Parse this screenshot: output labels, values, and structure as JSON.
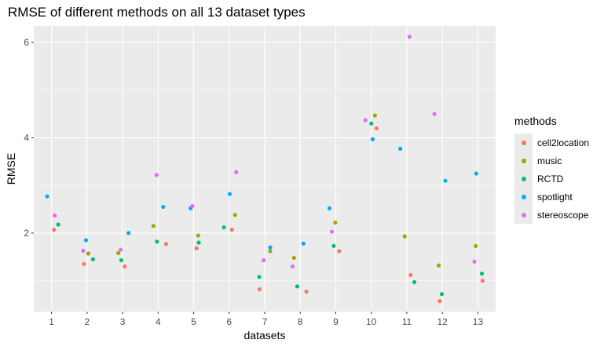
{
  "chart_data": {
    "type": "scatter",
    "title": "RMSE of different methods on all 13 dataset types",
    "xlabel": "datasets",
    "ylabel": "RMSE",
    "categories": [
      "1",
      "2",
      "3",
      "4",
      "5",
      "6",
      "7",
      "8",
      "9",
      "10",
      "11",
      "12",
      "13"
    ],
    "ylim": [
      0.35,
      6.35
    ],
    "yticks": [
      2,
      4,
      6
    ],
    "grid": true,
    "legend_position": "right",
    "legend_title": "methods",
    "series": [
      {
        "name": "cell2location",
        "color": "#F8766D",
        "values": [
          2.07,
          1.35,
          1.3,
          1.77,
          1.68,
          2.07,
          0.82,
          0.77,
          1.62,
          4.2,
          1.12,
          0.57,
          1.0
        ]
      },
      {
        "name": "music",
        "color": "#A3A500",
        "values": [
          null,
          1.57,
          1.58,
          2.15,
          1.95,
          2.38,
          1.62,
          1.48,
          2.22,
          4.47,
          1.93,
          1.32,
          1.73
        ]
      },
      {
        "name": "RCTD",
        "color": "#00BF7D",
        "values": [
          2.18,
          1.45,
          1.43,
          1.82,
          1.8,
          2.12,
          1.08,
          0.88,
          1.73,
          4.3,
          0.97,
          0.72,
          1.15
        ]
      },
      {
        "name": "spotlight",
        "color": "#00B0F6",
        "values": [
          2.77,
          1.85,
          2.0,
          2.55,
          2.52,
          2.82,
          1.7,
          1.78,
          2.52,
          3.97,
          3.77,
          3.1,
          3.25
        ]
      },
      {
        "name": "stereoscope",
        "color": "#E76BF3",
        "values": [
          2.37,
          1.63,
          1.65,
          3.22,
          2.57,
          3.28,
          1.43,
          1.3,
          2.03,
          4.37,
          6.12,
          4.5,
          1.4
        ]
      }
    ]
  }
}
